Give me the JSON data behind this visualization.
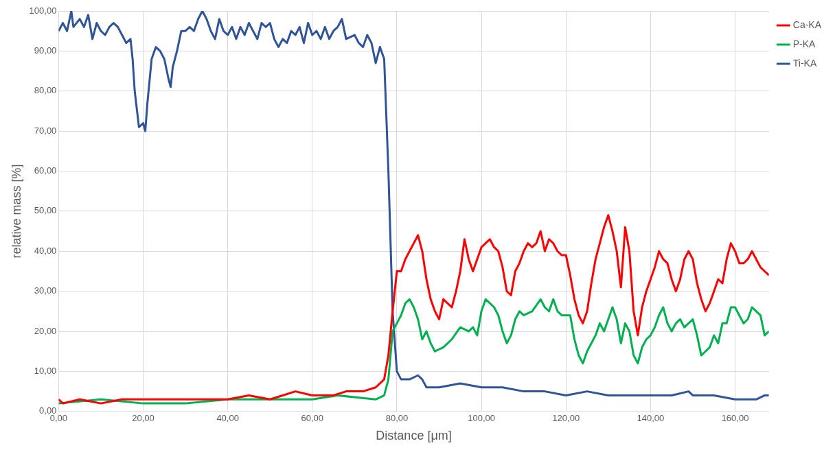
{
  "chart_data": {
    "type": "line",
    "xlabel": "Distance [μm]",
    "ylabel": "relative mass [%]",
    "xlim": [
      0,
      168
    ],
    "ylim": [
      0,
      100
    ],
    "xticks": [
      {
        "value": 0,
        "label": "0,00"
      },
      {
        "value": 20,
        "label": "20,00"
      },
      {
        "value": 40,
        "label": "40,00"
      },
      {
        "value": 60,
        "label": "60,00"
      },
      {
        "value": 80,
        "label": "80,00"
      },
      {
        "value": 100,
        "label": "100,00"
      },
      {
        "value": 120,
        "label": "120,00"
      },
      {
        "value": 140,
        "label": "140,00"
      },
      {
        "value": 160,
        "label": "160,00"
      }
    ],
    "yticks": [
      {
        "value": 0,
        "label": "0,00"
      },
      {
        "value": 10,
        "label": "10,00"
      },
      {
        "value": 20,
        "label": "20,00"
      },
      {
        "value": 30,
        "label": "30,00"
      },
      {
        "value": 40,
        "label": "40,00"
      },
      {
        "value": 50,
        "label": "50,00"
      },
      {
        "value": 60,
        "label": "60,00"
      },
      {
        "value": 70,
        "label": "70,00"
      },
      {
        "value": 80,
        "label": "80,00"
      },
      {
        "value": 90,
        "label": "90,00"
      },
      {
        "value": 100,
        "label": "100,00"
      }
    ],
    "grid": true,
    "legend": "top right",
    "marker": "none",
    "line_style": "solid",
    "series": [
      {
        "name": "Ca-KA",
        "color": "#ff0000",
        "x": [
          0,
          1,
          5,
          10,
          15,
          20,
          30,
          40,
          45,
          50,
          53,
          56,
          60,
          65,
          68,
          72,
          75,
          77,
          78,
          79,
          80,
          81,
          82,
          83,
          84,
          85,
          86,
          87,
          88,
          89,
          90,
          91,
          92,
          93,
          94,
          95,
          96,
          97,
          98,
          99,
          100,
          101,
          102,
          103,
          104,
          105,
          106,
          107,
          108,
          109,
          110,
          111,
          112,
          113,
          114,
          115,
          116,
          117,
          118,
          119,
          120,
          121,
          122,
          123,
          124,
          125,
          126,
          127,
          128,
          129,
          130,
          131,
          132,
          133,
          134,
          135,
          136,
          137,
          138,
          139,
          140,
          141,
          142,
          143,
          144,
          145,
          146,
          147,
          148,
          149,
          150,
          151,
          152,
          153,
          154,
          155,
          156,
          157,
          158,
          159,
          160,
          161,
          162,
          163,
          164,
          165,
          166,
          167,
          168
        ],
        "values": [
          3,
          2,
          3,
          2,
          3,
          3,
          3,
          3,
          4,
          3,
          4,
          5,
          4,
          4,
          5,
          5,
          6,
          8,
          14,
          25,
          35,
          35,
          38,
          40,
          42,
          44,
          40,
          33,
          28,
          25,
          23,
          28,
          27,
          26,
          30,
          35,
          43,
          38,
          35,
          38,
          41,
          42,
          43,
          41,
          40,
          36,
          30,
          29,
          35,
          37,
          40,
          42,
          41,
          42,
          45,
          40,
          43,
          42,
          40,
          39,
          39,
          34,
          28,
          24,
          22,
          25,
          32,
          38,
          42,
          46,
          49,
          45,
          40,
          31,
          46,
          40,
          25,
          19,
          26,
          30,
          33,
          36,
          40,
          38,
          37,
          33,
          30,
          33,
          38,
          40,
          38,
          32,
          28,
          25,
          27,
          30,
          33,
          32,
          38,
          42,
          40,
          37,
          37,
          38,
          40,
          38,
          36,
          35,
          34
        ]
      },
      {
        "name": "P-KA",
        "color": "#00b050",
        "x": [
          0,
          10,
          20,
          30,
          40,
          50,
          55,
          60,
          66,
          75,
          77,
          78,
          79,
          80,
          81,
          82,
          83,
          84,
          85,
          86,
          87,
          88,
          89,
          91,
          93,
          95,
          97,
          98,
          99,
          100,
          101,
          102,
          103,
          104,
          105,
          106,
          107,
          108,
          109,
          110,
          112,
          114,
          115,
          116,
          117,
          118,
          119,
          121,
          122,
          123,
          124,
          125,
          126,
          127,
          128,
          129,
          130,
          131,
          132,
          133,
          134,
          135,
          136,
          137,
          138,
          139,
          140,
          141,
          142,
          143,
          144,
          145,
          146,
          147,
          148,
          149,
          150,
          151,
          152,
          153,
          154,
          155,
          156,
          157,
          158,
          159,
          160,
          161,
          162,
          163,
          164,
          165,
          166,
          167,
          168
        ],
        "values": [
          2,
          3,
          2,
          2,
          3,
          3,
          3,
          3,
          4,
          3,
          4,
          8,
          20,
          22,
          24,
          27,
          28,
          26,
          23,
          18,
          20,
          17,
          15,
          16,
          18,
          21,
          20,
          21,
          19,
          25,
          28,
          27,
          26,
          24,
          20,
          17,
          19,
          23,
          25,
          24,
          25,
          28,
          26,
          25,
          28,
          25,
          24,
          24,
          18,
          14,
          12,
          15,
          17,
          19,
          22,
          20,
          23,
          26,
          23,
          17,
          22,
          20,
          14,
          12,
          16,
          18,
          19,
          21,
          24,
          26,
          22,
          20,
          22,
          23,
          21,
          22,
          23,
          19,
          14,
          15,
          16,
          19,
          17,
          22,
          22,
          26,
          26,
          24,
          22,
          23,
          26,
          25,
          24,
          19,
          20
        ]
      },
      {
        "name": "Ti-KA",
        "color": "#2f5597",
        "x": [
          0,
          1,
          2,
          3,
          3.5,
          5,
          6,
          7,
          8,
          9,
          10,
          11,
          12,
          13,
          14,
          15,
          16,
          17,
          17.5,
          18,
          19,
          20,
          20.5,
          21,
          22,
          23,
          24,
          25,
          26,
          26.5,
          27,
          28,
          29,
          30,
          31,
          32,
          33,
          34,
          35,
          36,
          37,
          38,
          39,
          40,
          41,
          42,
          43,
          44,
          45,
          46,
          47,
          48,
          49,
          50,
          51,
          52,
          53,
          54,
          55,
          56,
          57,
          58,
          59,
          60,
          61,
          62,
          63,
          64,
          65,
          66,
          67,
          68,
          70,
          71,
          72,
          73,
          74,
          75,
          76,
          77,
          78,
          79,
          80,
          81,
          83,
          85,
          86,
          87,
          90,
          95,
          100,
          105,
          110,
          115,
          120,
          125,
          130,
          140,
          145,
          149,
          150,
          155,
          160,
          165,
          167,
          168
        ],
        "values": [
          95,
          97,
          95,
          100,
          96,
          98,
          96,
          99,
          93,
          97,
          95,
          94,
          96,
          97,
          96,
          94,
          92,
          93,
          88,
          80,
          71,
          72,
          70,
          77,
          88,
          91,
          90,
          88,
          83,
          81,
          86,
          90,
          95,
          95,
          96,
          95,
          98,
          100,
          98,
          95,
          93,
          98,
          95,
          94,
          96,
          93,
          96,
          94,
          97,
          95,
          93,
          97,
          96,
          97,
          93,
          91,
          93,
          92,
          95,
          94,
          96,
          92,
          97,
          94,
          95,
          93,
          96,
          93,
          95,
          96,
          98,
          93,
          94,
          92,
          91,
          94,
          92,
          87,
          91,
          88,
          60,
          25,
          10,
          8,
          8,
          9,
          8,
          6,
          6,
          7,
          6,
          6,
          5,
          5,
          4,
          5,
          4,
          4,
          4,
          5,
          4,
          4,
          3,
          3,
          4,
          4
        ]
      }
    ]
  }
}
